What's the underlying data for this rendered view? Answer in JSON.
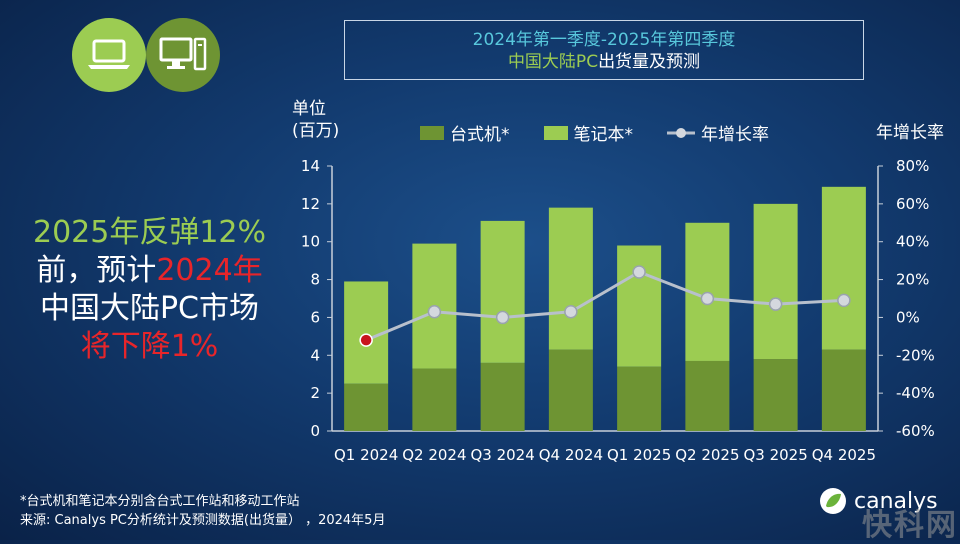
{
  "title": {
    "line1": "2024年第一季度-2025年第四季度",
    "line2_highlight": "中国大陆PC",
    "line2_rest": "出货量及预测"
  },
  "icons": {
    "laptop": "laptop-icon",
    "desktop": "desktop-icon"
  },
  "unit_label": {
    "line1": "单位",
    "line2": "(百万)"
  },
  "right_axis_label": "年增长率",
  "left_text": {
    "line1": "2025年反弹12%",
    "line2_prefix": "前，预计",
    "line2_red": "2024年",
    "line3": "中国大陆PC市场",
    "line4": "将下降1%"
  },
  "footnote": {
    "line1": "*台式机和笔记本分别含台式工作站和移动工作站",
    "line2": "来源: Canalys PC分析统计及预测数据(出货量） ，2024年5月"
  },
  "logo_text": "canalys",
  "watermark": "快科网",
  "colors": {
    "desktop": "#6e9433",
    "notebook": "#9ccc52",
    "growth_line": "#b8c0cc",
    "growth_point_highlight": "#c8141e",
    "title_accent": "#58c8dc",
    "text_red": "#e8252a"
  },
  "chart_data": {
    "type": "bar",
    "stacked": true,
    "categories": [
      "Q1 2024",
      "Q2 2024",
      "Q3 2024",
      "Q4 2024",
      "Q1 2025",
      "Q2 2025",
      "Q3 2025",
      "Q4 2025"
    ],
    "series": [
      {
        "name": "台式机*",
        "type": "bar",
        "axis": "left",
        "values": [
          2.5,
          3.3,
          3.6,
          4.3,
          3.4,
          3.7,
          3.8,
          4.3
        ]
      },
      {
        "name": "笔记本*",
        "type": "bar",
        "axis": "left",
        "values": [
          5.4,
          6.6,
          7.5,
          7.5,
          6.4,
          7.3,
          8.2,
          8.6
        ]
      },
      {
        "name": "年增长率",
        "type": "line",
        "axis": "right",
        "values": [
          -12,
          3,
          0,
          3,
          24,
          10,
          7,
          9
        ]
      }
    ],
    "left_axis": {
      "range": [
        0,
        14
      ],
      "ticks": [
        "0",
        "2",
        "4",
        "6",
        "8",
        "10",
        "12",
        "14"
      ]
    },
    "right_axis": {
      "range": [
        -60,
        80
      ],
      "ticks": [
        "-60%",
        "-40%",
        "-20%",
        "0%",
        "20%",
        "40%",
        "60%",
        "80%"
      ]
    },
    "legend_position": "top",
    "grid": false
  }
}
